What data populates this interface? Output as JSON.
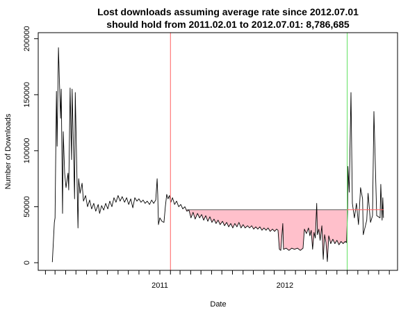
{
  "chart_data": {
    "type": "line",
    "title": "Lost downloads assuming average rate since 2012.07.01",
    "subtitle": "should hold from 2011.02.01 to 2012.07.01: 8,786,685",
    "xlabel": "Date",
    "ylabel": "Number of Downloads",
    "ylim": [
      0,
      200000
    ],
    "yticks": [
      "0",
      "50000",
      "100000",
      "150000",
      "200000"
    ],
    "xtick_labels": [
      {
        "date": "2011-01-01",
        "label": "2011"
      },
      {
        "date": "2012-01-01",
        "label": "2012"
      }
    ],
    "xtick_months": {
      "start": "2010-02-01",
      "end": "2012-11-01"
    },
    "grid": false,
    "average_rate": 47300,
    "shade_from": "2011-02-01",
    "shade_to": "2012-07-01",
    "lost_downloads": "8,786,685",
    "colors": {
      "line": "#000000",
      "shade": "#FFC0CB",
      "start_marker": "#FF6060",
      "end_marker": "#60E060",
      "average_line": "#777777",
      "projection_line": "#FF6060"
    },
    "series": [
      {
        "name": "Downloads",
        "points": [
          [
            "2010-02-21",
            500
          ],
          [
            "2010-02-27",
            36000
          ],
          [
            "2010-03-01",
            40000
          ],
          [
            "2010-03-05",
            153000
          ],
          [
            "2010-03-07",
            104000
          ],
          [
            "2010-03-11",
            192000
          ],
          [
            "2010-03-17",
            129000
          ],
          [
            "2010-03-19",
            155000
          ],
          [
            "2010-03-23",
            44000
          ],
          [
            "2010-03-25",
            117000
          ],
          [
            "2010-03-29",
            80000
          ],
          [
            "2010-04-02",
            67000
          ],
          [
            "2010-04-08",
            80000
          ],
          [
            "2010-04-10",
            65000
          ],
          [
            "2010-04-14",
            156000
          ],
          [
            "2010-04-18",
            92000
          ],
          [
            "2010-04-20",
            155000
          ],
          [
            "2010-04-27",
            57000
          ],
          [
            "2010-04-29",
            152000
          ],
          [
            "2010-05-07",
            31000
          ],
          [
            "2010-05-09",
            75000
          ],
          [
            "2010-05-13",
            62000
          ],
          [
            "2010-05-19",
            71000
          ],
          [
            "2010-05-23",
            55000
          ],
          [
            "2010-05-29",
            60000
          ],
          [
            "2010-06-04",
            50000
          ],
          [
            "2010-06-10",
            56000
          ],
          [
            "2010-06-16",
            48000
          ],
          [
            "2010-06-22",
            53000
          ],
          [
            "2010-06-28",
            46000
          ],
          [
            "2010-07-05",
            52000
          ],
          [
            "2010-07-09",
            44000
          ],
          [
            "2010-07-15",
            51000
          ],
          [
            "2010-07-21",
            47000
          ],
          [
            "2010-07-27",
            53000
          ],
          [
            "2010-08-02",
            48000
          ],
          [
            "2010-08-08",
            55000
          ],
          [
            "2010-08-14",
            50000
          ],
          [
            "2010-08-20",
            58000
          ],
          [
            "2010-08-26",
            54000
          ],
          [
            "2010-09-01",
            60000
          ],
          [
            "2010-09-07",
            55000
          ],
          [
            "2010-09-13",
            59000
          ],
          [
            "2010-09-20",
            54000
          ],
          [
            "2010-09-26",
            58000
          ],
          [
            "2010-10-02",
            52000
          ],
          [
            "2010-10-08",
            57000
          ],
          [
            "2010-10-14",
            49000
          ],
          [
            "2010-10-20",
            58000
          ],
          [
            "2010-10-26",
            55000
          ],
          [
            "2010-11-01",
            57000
          ],
          [
            "2010-11-07",
            54000
          ],
          [
            "2010-11-13",
            56000
          ],
          [
            "2010-11-19",
            53000
          ],
          [
            "2010-11-25",
            55000
          ],
          [
            "2010-12-02",
            52000
          ],
          [
            "2010-12-08",
            56000
          ],
          [
            "2010-12-14",
            53000
          ],
          [
            "2010-12-20",
            56000
          ],
          [
            "2010-12-24",
            75000
          ],
          [
            "2010-12-26",
            60000
          ],
          [
            "2010-12-28",
            34000
          ],
          [
            "2011-01-01",
            40000
          ],
          [
            "2011-01-07",
            37000
          ],
          [
            "2011-01-13",
            36000
          ],
          [
            "2011-01-17",
            50000
          ],
          [
            "2011-01-21",
            61000
          ],
          [
            "2011-01-25",
            57000
          ],
          [
            "2011-01-29",
            60000
          ],
          [
            "2011-02-02",
            54000
          ],
          [
            "2011-02-07",
            58000
          ],
          [
            "2011-02-13",
            52000
          ],
          [
            "2011-02-19",
            55000
          ],
          [
            "2011-02-25",
            50000
          ],
          [
            "2011-03-03",
            52000
          ],
          [
            "2011-03-09",
            48000
          ],
          [
            "2011-03-15",
            50000
          ],
          [
            "2011-03-21",
            46000
          ],
          [
            "2011-03-27",
            47000
          ],
          [
            "2011-04-02",
            40000
          ],
          [
            "2011-04-08",
            45000
          ],
          [
            "2011-04-14",
            39000
          ],
          [
            "2011-04-21",
            44000
          ],
          [
            "2011-04-27",
            40000
          ],
          [
            "2011-05-03",
            43000
          ],
          [
            "2011-05-09",
            38000
          ],
          [
            "2011-05-15",
            42000
          ],
          [
            "2011-05-21",
            37000
          ],
          [
            "2011-05-27",
            41000
          ],
          [
            "2011-06-02",
            36000
          ],
          [
            "2011-06-08",
            39000
          ],
          [
            "2011-06-14",
            35000
          ],
          [
            "2011-06-20",
            38000
          ],
          [
            "2011-06-26",
            34000
          ],
          [
            "2011-07-03",
            37000
          ],
          [
            "2011-07-09",
            33000
          ],
          [
            "2011-07-15",
            36000
          ],
          [
            "2011-07-21",
            32000
          ],
          [
            "2011-07-27",
            35000
          ],
          [
            "2011-08-02",
            31000
          ],
          [
            "2011-08-08",
            35000
          ],
          [
            "2011-08-14",
            32000
          ],
          [
            "2011-08-20",
            36000
          ],
          [
            "2011-08-26",
            31000
          ],
          [
            "2011-09-01",
            34000
          ],
          [
            "2011-09-07",
            31000
          ],
          [
            "2011-09-14",
            33000
          ],
          [
            "2011-09-20",
            31000
          ],
          [
            "2011-09-26",
            33000
          ],
          [
            "2011-10-02",
            30000
          ],
          [
            "2011-10-08",
            32000
          ],
          [
            "2011-10-14",
            30000
          ],
          [
            "2011-10-20",
            32000
          ],
          [
            "2011-10-26",
            29000
          ],
          [
            "2011-11-01",
            31000
          ],
          [
            "2011-11-07",
            29000
          ],
          [
            "2011-11-13",
            31000
          ],
          [
            "2011-11-19",
            28000
          ],
          [
            "2011-11-26",
            30000
          ],
          [
            "2011-12-02",
            28000
          ],
          [
            "2011-12-08",
            30000
          ],
          [
            "2011-12-12",
            29000
          ],
          [
            "2011-12-16",
            12000
          ],
          [
            "2011-12-20",
            11000
          ],
          [
            "2011-12-26",
            35000
          ],
          [
            "2011-12-28",
            12000
          ],
          [
            "2012-01-05",
            13000
          ],
          [
            "2012-01-13",
            11000
          ],
          [
            "2012-01-21",
            13000
          ],
          [
            "2012-01-29",
            12000
          ],
          [
            "2012-02-07",
            13000
          ],
          [
            "2012-02-15",
            11000
          ],
          [
            "2012-02-23",
            13000
          ],
          [
            "2012-02-27",
            30000
          ],
          [
            "2012-03-04",
            26000
          ],
          [
            "2012-03-10",
            31000
          ],
          [
            "2012-03-14",
            24000
          ],
          [
            "2012-03-18",
            29000
          ],
          [
            "2012-03-22",
            12000
          ],
          [
            "2012-03-26",
            27000
          ],
          [
            "2012-03-30",
            22000
          ],
          [
            "2012-04-03",
            53000
          ],
          [
            "2012-04-05",
            25000
          ],
          [
            "2012-04-09",
            30000
          ],
          [
            "2012-04-13",
            20000
          ],
          [
            "2012-04-18",
            33000
          ],
          [
            "2012-04-22",
            3000
          ],
          [
            "2012-04-26",
            25000
          ],
          [
            "2012-04-30",
            18000
          ],
          [
            "2012-05-04",
            1000
          ],
          [
            "2012-05-08",
            24000
          ],
          [
            "2012-05-14",
            17000
          ],
          [
            "2012-05-20",
            21000
          ],
          [
            "2012-05-26",
            17000
          ],
          [
            "2012-06-01",
            20000
          ],
          [
            "2012-06-07",
            16000
          ],
          [
            "2012-06-13",
            19000
          ],
          [
            "2012-06-19",
            17000
          ],
          [
            "2012-06-25",
            19000
          ],
          [
            "2012-06-29",
            18000
          ],
          [
            "2012-07-02",
            45000
          ],
          [
            "2012-07-03",
            86000
          ],
          [
            "2012-07-07",
            63000
          ],
          [
            "2012-07-12",
            152000
          ],
          [
            "2012-07-16",
            53000
          ],
          [
            "2012-07-22",
            40000
          ],
          [
            "2012-07-28",
            53000
          ],
          [
            "2012-08-03",
            34000
          ],
          [
            "2012-08-09",
            67000
          ],
          [
            "2012-08-15",
            57000
          ],
          [
            "2012-08-17",
            25000
          ],
          [
            "2012-08-27",
            38000
          ],
          [
            "2012-08-31",
            62000
          ],
          [
            "2012-09-07",
            36000
          ],
          [
            "2012-09-13",
            42000
          ],
          [
            "2012-09-17",
            135000
          ],
          [
            "2012-09-25",
            42000
          ],
          [
            "2012-10-05",
            40000
          ],
          [
            "2012-10-07",
            70000
          ],
          [
            "2012-10-11",
            38000
          ],
          [
            "2012-10-13",
            58000
          ],
          [
            "2012-10-15",
            40000
          ]
        ]
      }
    ]
  }
}
